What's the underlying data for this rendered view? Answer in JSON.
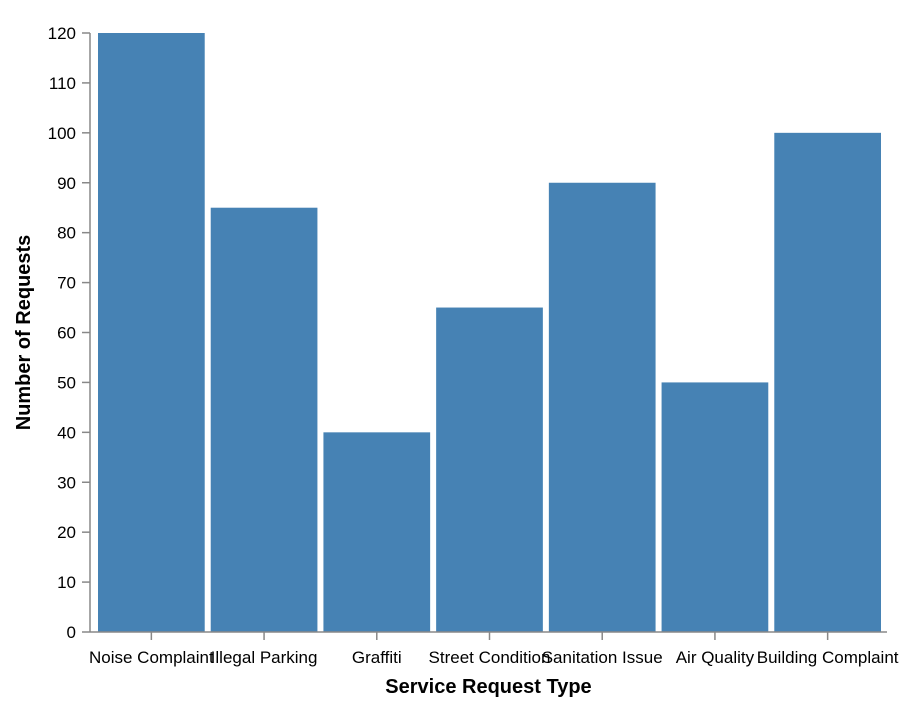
{
  "chart_data": {
    "type": "bar",
    "categories": [
      "Noise Complaint",
      "Illegal Parking",
      "Graffiti",
      "Street Condition",
      "Sanitation Issue",
      "Air Quality",
      "Building Complaint"
    ],
    "values": [
      120,
      85,
      40,
      65,
      90,
      50,
      100
    ],
    "title": "",
    "xlabel": "Service Request Type",
    "ylabel": "Number of Requests",
    "ylim": [
      0,
      120
    ],
    "yticks": [
      0,
      10,
      20,
      30,
      40,
      50,
      60,
      70,
      80,
      90,
      100,
      110,
      120
    ],
    "grid": false,
    "legend": "none",
    "bar_color": "#4682b4"
  }
}
